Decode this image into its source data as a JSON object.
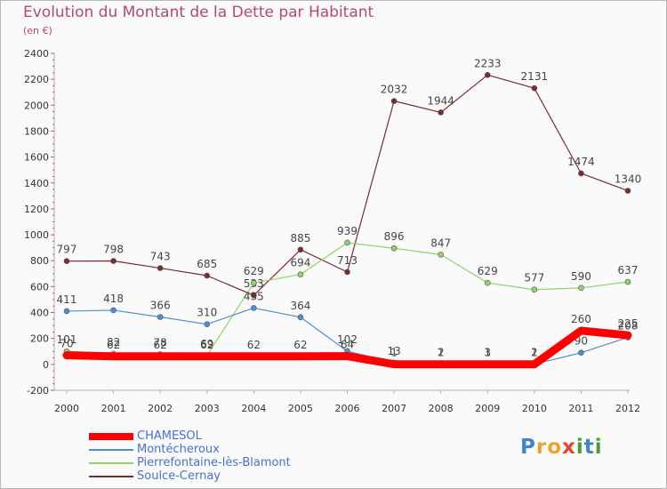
{
  "title": "Evolution du Montant de la Dette par Habitant",
  "subtitle": "(en €)",
  "logo": {
    "letters": [
      {
        "ch": "P",
        "color": "#3b86c9"
      },
      {
        "ch": "r",
        "color": "#e8a52b"
      },
      {
        "ch": "o",
        "color": "#e8a52b"
      },
      {
        "ch": "x",
        "color": "#e0452e"
      },
      {
        "ch": "i",
        "color": "#4f9a37"
      },
      {
        "ch": "t",
        "color": "#3b86c9"
      },
      {
        "ch": "i",
        "color": "#4f9a37"
      }
    ]
  },
  "chart_data": {
    "type": "line",
    "title": "Evolution du Montant de la Dette par Habitant",
    "subtitle": "(en €)",
    "x": [
      2000,
      2001,
      2002,
      2003,
      2004,
      2005,
      2006,
      2007,
      2008,
      2009,
      2010,
      2011,
      2012
    ],
    "ylim": [
      -200,
      2400
    ],
    "yticks": [
      -200,
      0,
      200,
      400,
      600,
      800,
      1000,
      1200,
      1400,
      1600,
      1800,
      2000,
      2200,
      2400
    ],
    "grid": false,
    "legend_position": "bottom-left",
    "series": [
      {
        "name": "Soulce-Cernay",
        "color": "#7b2b2b",
        "values": [
          797,
          798,
          743,
          685,
          533,
          885,
          713,
          2032,
          1944,
          2233,
          2131,
          1474,
          1340
        ],
        "labels": [
          "797",
          "798",
          "743",
          "685",
          "533",
          "885",
          "713",
          "2032",
          "1944",
          "2233",
          "2131",
          "1474",
          "1340"
        ]
      },
      {
        "name": "Pierrefontaine-lès-Blamont",
        "color": "#8fd468",
        "values": [
          101,
          82,
          78,
          69,
          629,
          694,
          939,
          896,
          847,
          629,
          577,
          590,
          637
        ],
        "labels": [
          "101",
          "82",
          "78",
          "69",
          "629",
          "694",
          "939",
          "896",
          "847",
          "629",
          "577",
          "590",
          "637"
        ]
      },
      {
        "name": "Montécheroux",
        "color": "#4b8fd0",
        "values": [
          411,
          418,
          366,
          310,
          435,
          364,
          102,
          13,
          2,
          3,
          2,
          90,
          208
        ],
        "labels": [
          "411",
          "418",
          "366",
          "310",
          "435",
          "364",
          "102",
          "13",
          "2",
          "3",
          "2",
          "90",
          "208"
        ]
      },
      {
        "name": "CHAMESOL",
        "color": "#ff0000",
        "values": [
          70,
          62,
          62,
          62,
          62,
          62,
          64,
          1,
          1,
          1,
          1,
          260,
          225
        ],
        "labels": [
          "70",
          "62",
          "62",
          "62",
          "62",
          "62",
          "64",
          "1",
          "1",
          "1",
          "1",
          "260",
          "225"
        ]
      }
    ]
  }
}
